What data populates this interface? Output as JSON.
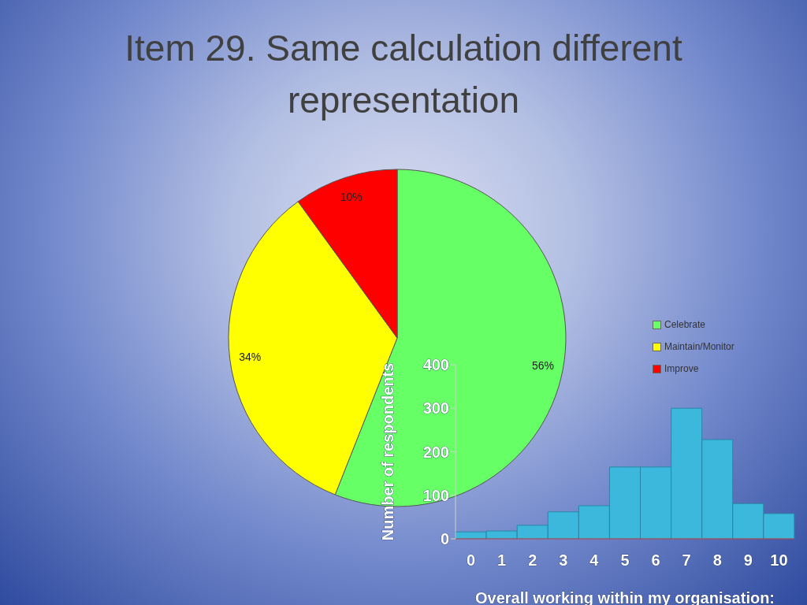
{
  "chart_data": [
    {
      "type": "pie",
      "title": "Item 29. Same calculation different representation",
      "categories": [
        "Celebrate",
        "Maintain/Monitor",
        "Improve"
      ],
      "values": [
        56,
        34,
        10
      ],
      "value_labels": [
        "56%",
        "34%",
        "10%"
      ],
      "colors": [
        "#66ff66",
        "#ffff00",
        "#ff0000"
      ],
      "data_labels": true,
      "legend": "right"
    },
    {
      "type": "bar",
      "categories": [
        "0",
        "1",
        "2",
        "3",
        "4",
        "5",
        "6",
        "7",
        "8",
        "9",
        "10"
      ],
      "values": [
        16,
        18,
        31,
        62,
        76,
        165,
        165,
        300,
        228,
        81,
        58
      ],
      "color": "#3cb8dc",
      "x_label": "Overall working within my organisation:",
      "y_label": "Number of respondents",
      "ylim": [
        0,
        400
      ],
      "yticks": [
        0,
        100,
        200,
        300,
        400
      ],
      "grid": false
    }
  ]
}
